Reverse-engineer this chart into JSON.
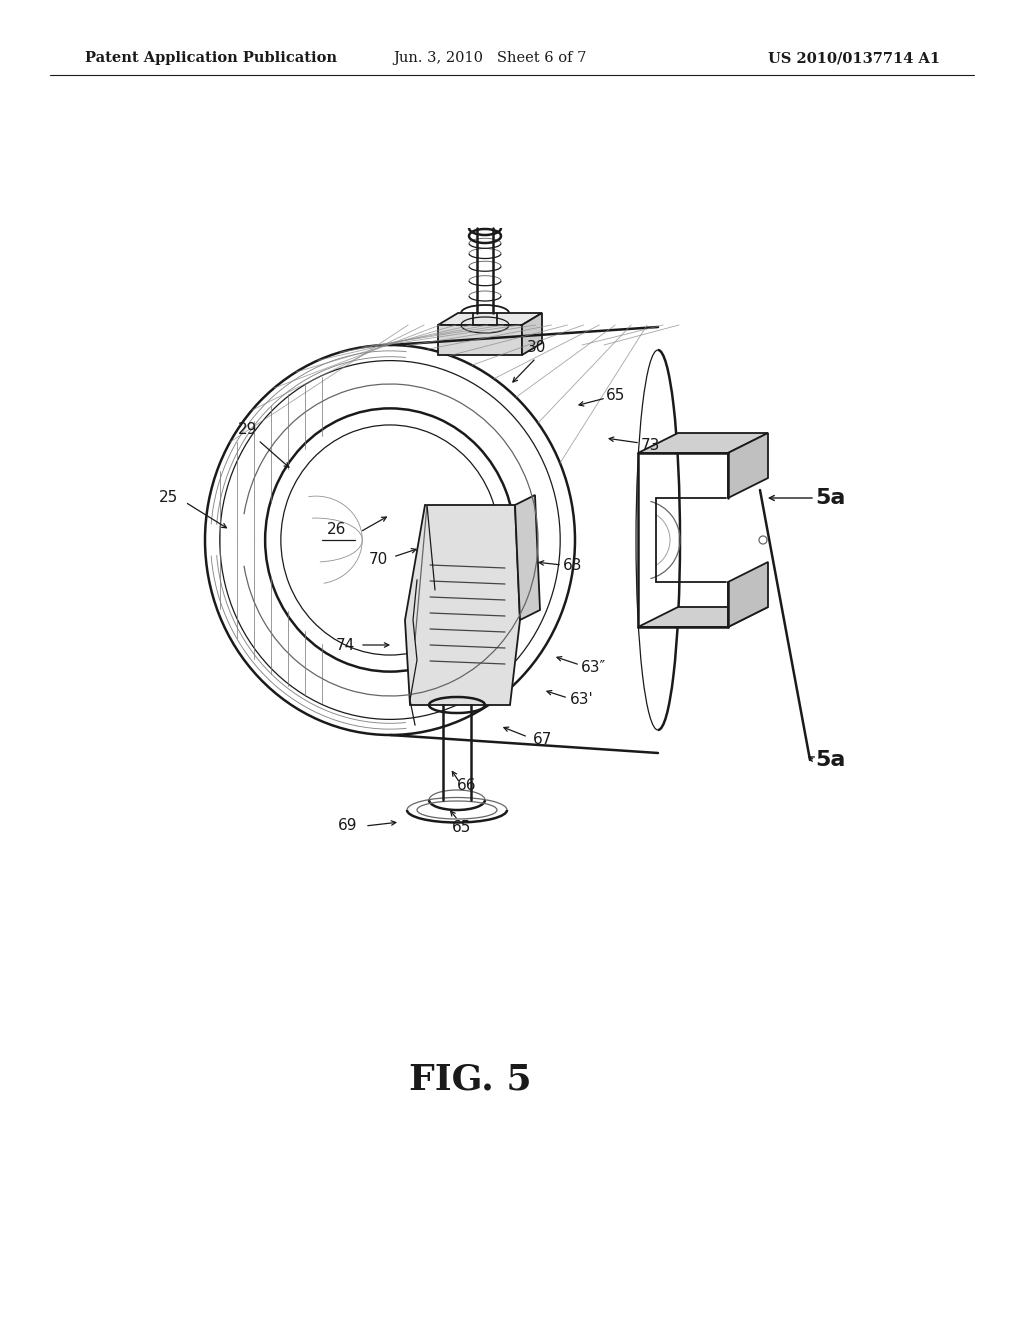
{
  "background_color": "#ffffff",
  "header_left": "Patent Application Publication",
  "header_center": "Jun. 3, 2010   Sheet 6 of 7",
  "header_right": "US 2010/0137714 A1",
  "fig_label": "FIG. 5",
  "header_fontsize": 10.5,
  "fig_label_fontsize": 26,
  "col": "#1a1a1a",
  "gray": "#666666",
  "lightgray": "#999999"
}
